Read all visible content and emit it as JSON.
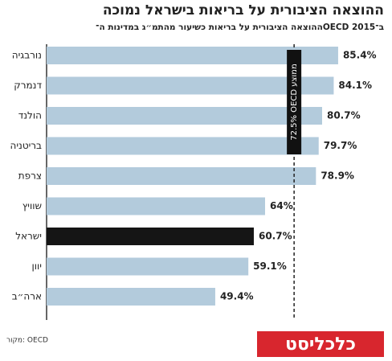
{
  "chart_data": {
    "type": "bar",
    "orientation": "horizontal",
    "title": "ההוצאה הציבורית על בריאות בישראל נמוכה",
    "subtitle": "ההוצאה הציבורית על בריאות כשיעור מהתמ״ג במדינות ה־OECD ב־2015",
    "categories": [
      "נורבגיה",
      "דנמרק",
      "הולנד",
      "בריטניה",
      "צרפת",
      "שוויץ",
      "ישראל",
      "יוון",
      "ארה״ב"
    ],
    "values": [
      85.4,
      84.1,
      80.7,
      79.7,
      78.9,
      64,
      60.7,
      59.1,
      49.4
    ],
    "value_labels": [
      "85.4%",
      "84.1%",
      "80.7%",
      "79.7%",
      "78.9%",
      "64%",
      "60.7%",
      "59.1%",
      "49.4%"
    ],
    "colors": [
      "#b3cbdc",
      "#b3cbdc",
      "#b3cbdc",
      "#b3cbdc",
      "#b3cbdc",
      "#b3cbdc",
      "#151515",
      "#b3cbdc",
      "#b3cbdc"
    ],
    "xlim": [
      0,
      100
    ],
    "average": {
      "value": 72.5,
      "label": "72.5% OECD ממוצע"
    },
    "source": "מקור: OECD",
    "logo": "כלכליסט"
  }
}
